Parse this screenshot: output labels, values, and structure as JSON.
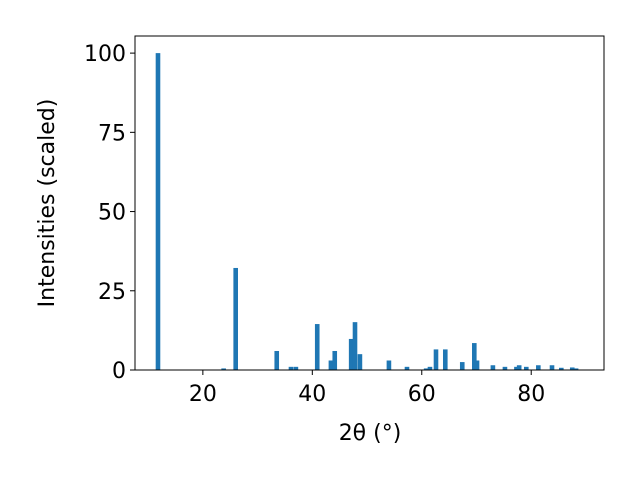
{
  "chart_data": {
    "type": "bar",
    "xlabel": "2θ (°)",
    "ylabel": "Intensities (scaled)",
    "x": [
      11.8,
      23.8,
      26.0,
      33.5,
      36.1,
      37.0,
      40.9,
      43.4,
      44.1,
      47.1,
      47.8,
      48.7,
      54.0,
      57.3,
      60.8,
      61.5,
      62.6,
      64.3,
      67.4,
      69.6,
      70.1,
      73.0,
      75.2,
      77.3,
      77.8,
      79.1,
      81.3,
      83.8,
      85.5,
      87.5,
      88.2
    ],
    "values": [
      100,
      0.5,
      32.2,
      6,
      1,
      1,
      14.5,
      3,
      6,
      9.8,
      15.1,
      5,
      3,
      1,
      0.5,
      1,
      6.5,
      6.5,
      2.5,
      8.5,
      3,
      1.5,
      1,
      1,
      1.5,
      1,
      1.5,
      1.5,
      0.7,
      0.8,
      0.5
    ],
    "color": "#1f77b4",
    "xlim": [
      7.6,
      93.3
    ],
    "xticks": [
      20,
      40,
      60,
      80
    ],
    "ylim": [
      0,
      105.4
    ],
    "yticks": [
      0,
      25,
      50,
      75,
      100
    ]
  }
}
